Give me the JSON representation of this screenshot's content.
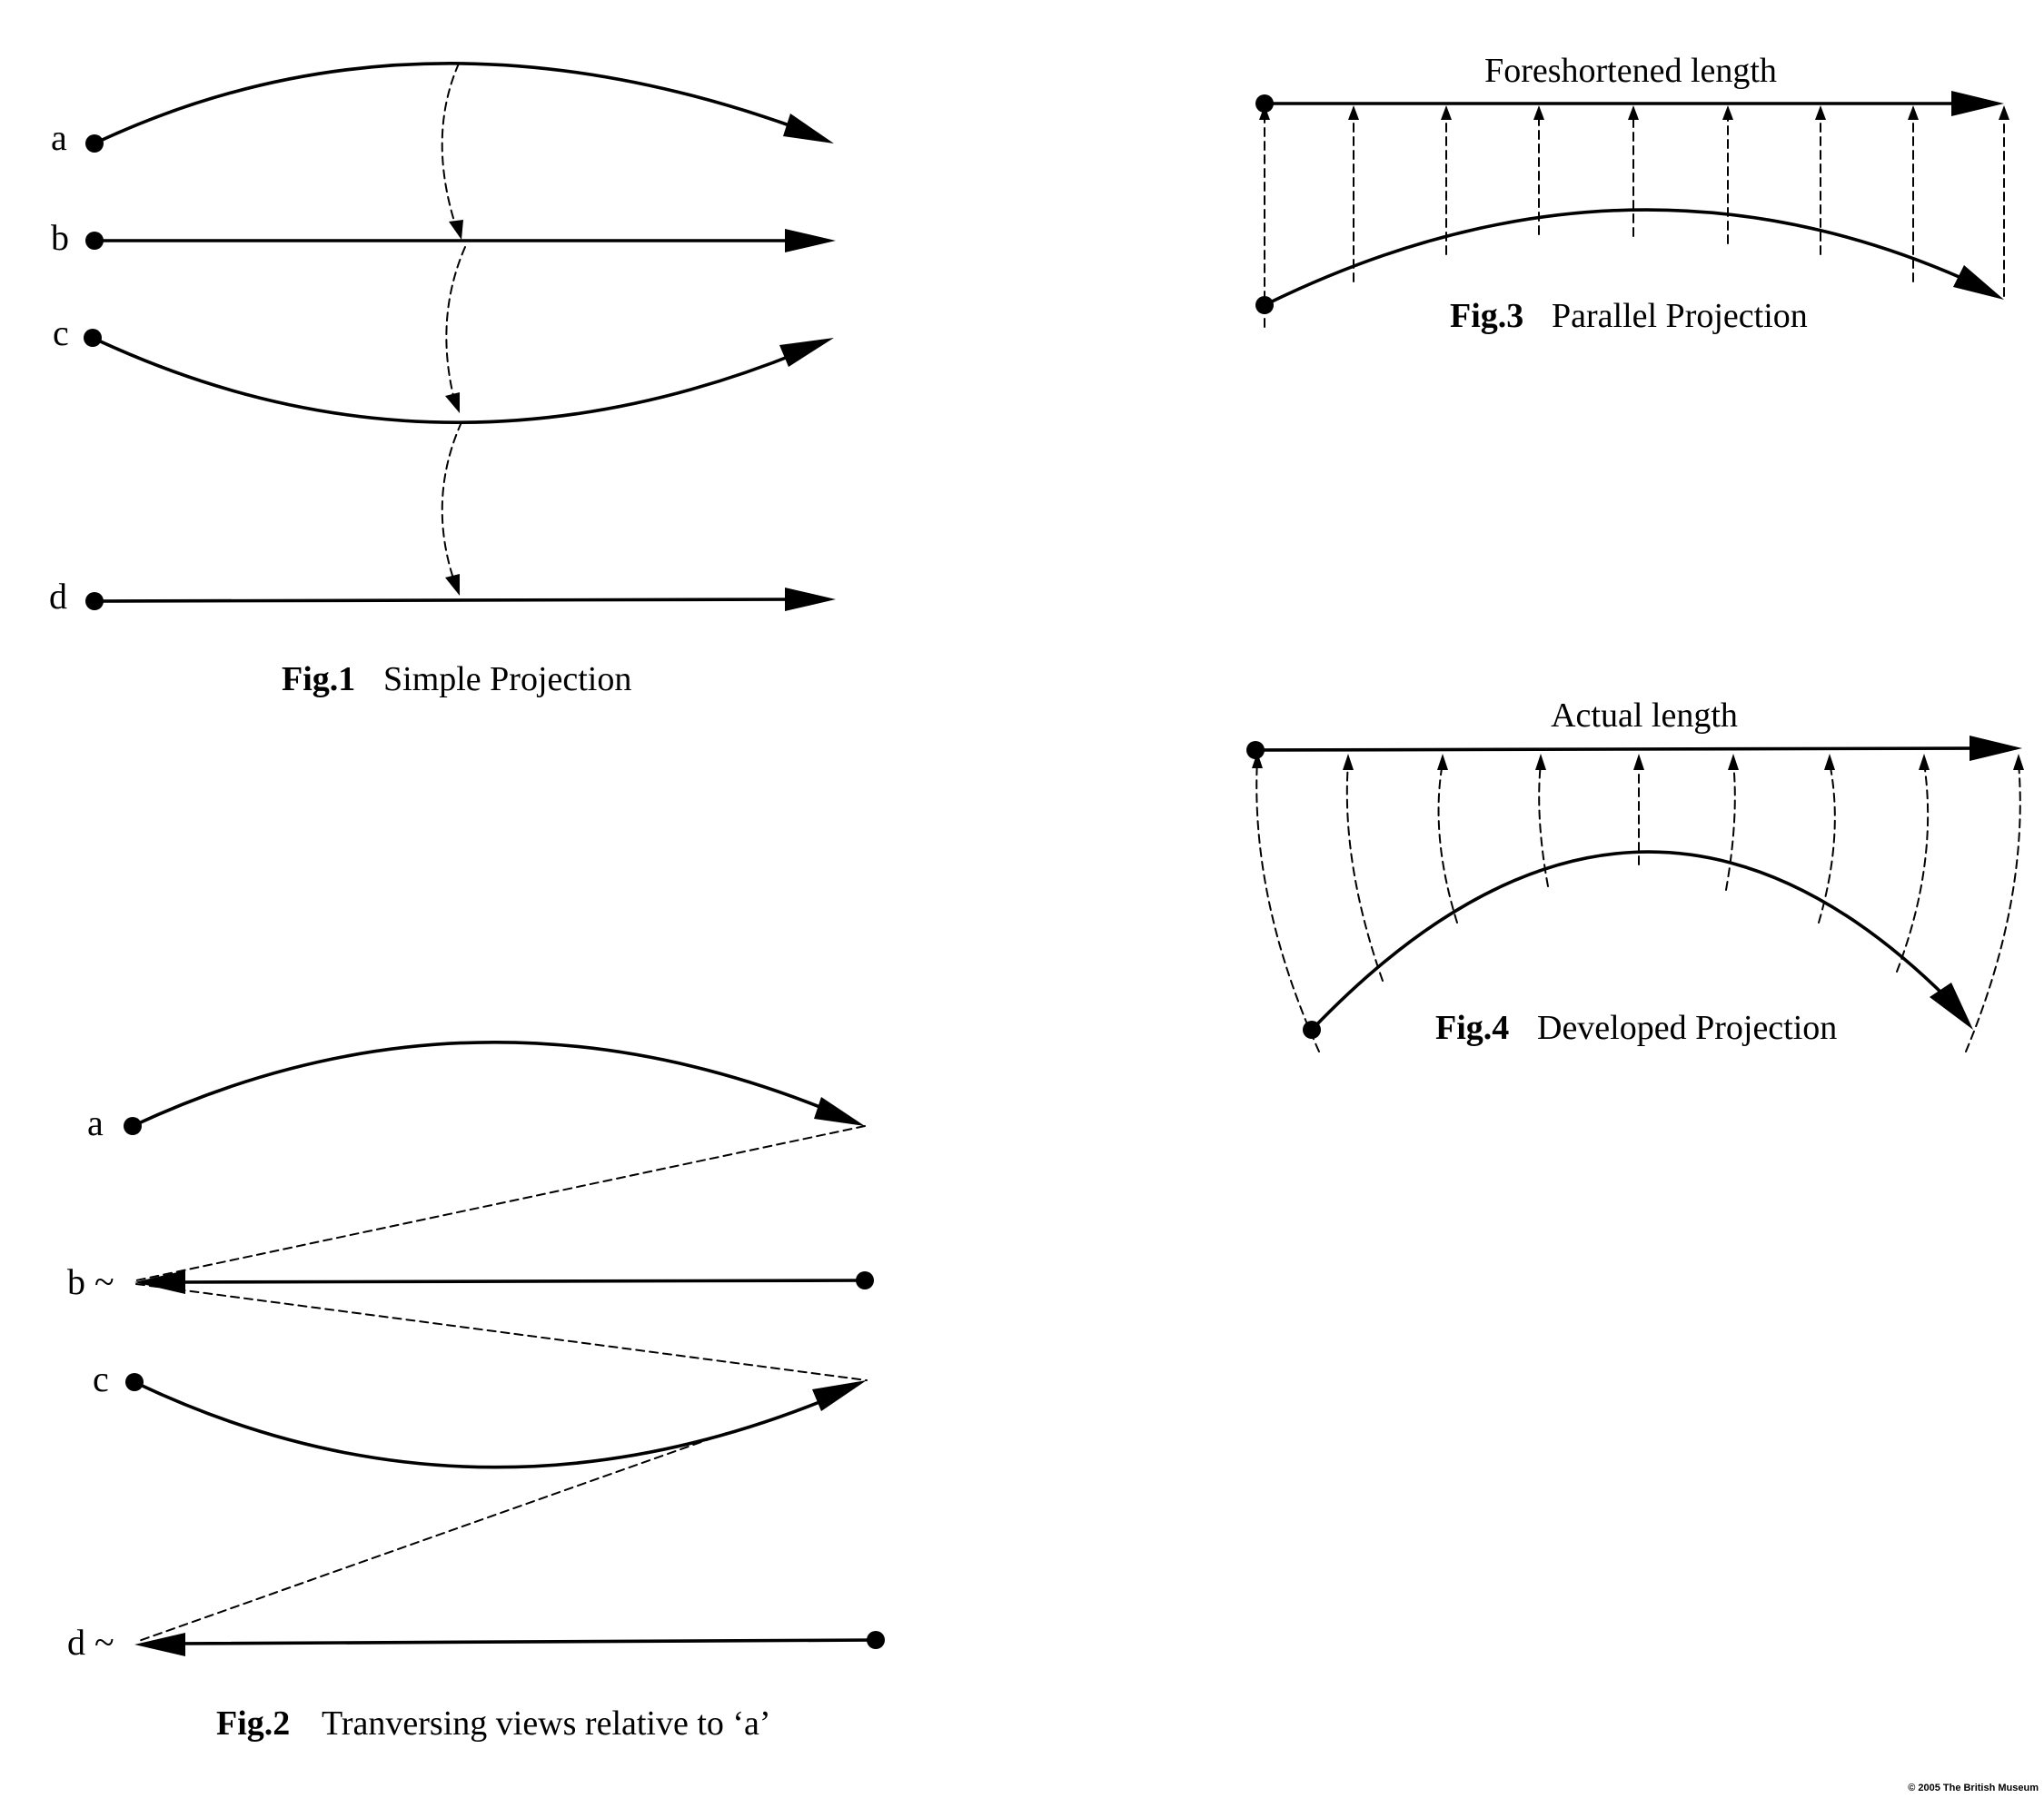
{
  "fig1": {
    "labels": [
      "a",
      "b",
      "c",
      "d"
    ],
    "caption_num": "Fig.1",
    "caption_text": "Simple Projection"
  },
  "fig2": {
    "labels": [
      "a",
      "b ~",
      "c",
      "d ~"
    ],
    "caption_num": "Fig.2",
    "caption_text": "Tranversing views relative to ‘a’"
  },
  "fig3": {
    "top_label": "Foreshortened length",
    "caption_num": "Fig.3",
    "caption_text": "Parallel Projection"
  },
  "fig4": {
    "top_label": "Actual length",
    "caption_num": "Fig.4",
    "caption_text": "Developed Projection"
  },
  "copyright": "© 2005 The British Museum"
}
